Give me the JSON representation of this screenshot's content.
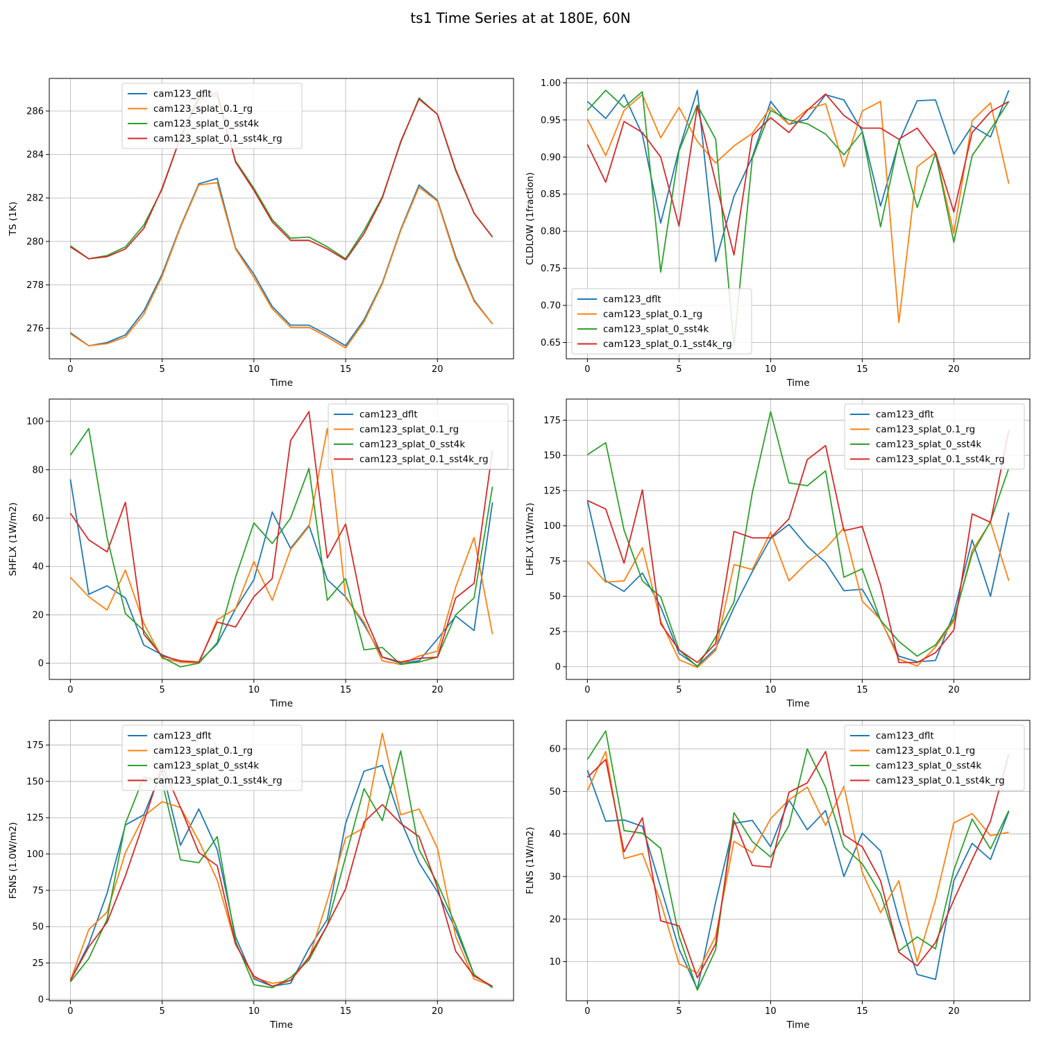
{
  "suptitle": "ts1 Time Series at at 180E, 60N",
  "colors": {
    "cam123_dflt": "#1f77b4",
    "cam123_splat_0.1_rg": "#ff7f0e",
    "cam123_splat_0_sst4k": "#2ca02c",
    "cam123_splat_0.1_sst4k_rg": "#d62728"
  },
  "chart_data": [
    {
      "type": "line",
      "id": "ts",
      "title": "",
      "xlabel": "Time",
      "ylabel": "TS (1K)",
      "xlim": [
        -1.15,
        24.15
      ],
      "ylim": [
        274.6,
        287.5
      ],
      "xticks": [
        0,
        5,
        10,
        15,
        20
      ],
      "yticks": [
        276,
        278,
        280,
        282,
        284,
        286
      ],
      "ytick_labels": [
        "276",
        "278",
        "280",
        "282",
        "284",
        "286"
      ],
      "grid": true,
      "legend_loc": "upper-center",
      "x": [
        0,
        1,
        2,
        3,
        4,
        5,
        6,
        7,
        8,
        9,
        10,
        11,
        12,
        13,
        14,
        15,
        16,
        17,
        18,
        19,
        20,
        21,
        22,
        23
      ],
      "series": [
        {
          "name": "cam123_dflt",
          "values": [
            275.8,
            275.2,
            275.35,
            275.7,
            276.8,
            278.5,
            280.7,
            282.65,
            282.9,
            279.7,
            278.5,
            277.0,
            276.15,
            276.15,
            275.7,
            275.2,
            276.4,
            278.1,
            280.55,
            282.6,
            281.9,
            279.3,
            277.3,
            276.2
          ]
        },
        {
          "name": "cam123_splat_0.1_rg",
          "values": [
            275.75,
            275.2,
            275.3,
            275.6,
            276.65,
            278.4,
            280.65,
            282.6,
            282.7,
            279.65,
            278.35,
            276.9,
            276.05,
            276.05,
            275.6,
            275.1,
            276.3,
            278.05,
            280.5,
            282.5,
            281.85,
            279.2,
            277.25,
            276.2
          ]
        },
        {
          "name": "cam123_splat_0_sst4k",
          "values": [
            279.8,
            279.2,
            279.35,
            279.75,
            280.75,
            282.4,
            284.8,
            286.65,
            286.7,
            283.7,
            282.45,
            281.0,
            280.15,
            280.2,
            279.75,
            279.2,
            280.5,
            282.05,
            284.55,
            286.6,
            285.85,
            283.25,
            281.3,
            280.2
          ]
        },
        {
          "name": "cam123_splat_0.1_sst4k_rg",
          "values": [
            279.75,
            279.2,
            279.3,
            279.65,
            280.6,
            282.45,
            284.8,
            286.55,
            286.85,
            283.65,
            282.35,
            280.9,
            280.05,
            280.05,
            279.65,
            279.15,
            280.35,
            282.0,
            284.6,
            286.55,
            285.85,
            283.3,
            281.3,
            280.2
          ]
        }
      ]
    },
    {
      "type": "line",
      "id": "cldlow",
      "title": "",
      "xlabel": "Time",
      "ylabel": "CLDLOW (1fraction)",
      "xlim": [
        -1.15,
        24.15
      ],
      "ylim": [
        0.628,
        1.006
      ],
      "xticks": [
        0,
        5,
        10,
        15,
        20
      ],
      "yticks": [
        0.65,
        0.7,
        0.75,
        0.8,
        0.85,
        0.9,
        0.95,
        1.0
      ],
      "ytick_labels": [
        "0.65",
        "0.70",
        "0.75",
        "0.80",
        "0.85",
        "0.90",
        "0.95",
        "1.00"
      ],
      "grid": true,
      "legend_loc": "lower-left",
      "x": [
        0,
        1,
        2,
        3,
        4,
        5,
        6,
        7,
        8,
        9,
        10,
        11,
        12,
        13,
        14,
        15,
        16,
        17,
        18,
        19,
        20,
        21,
        22,
        23
      ],
      "series": [
        {
          "name": "cam123_dflt",
          "values": [
            0.975,
            0.952,
            0.984,
            0.93,
            0.811,
            0.91,
            0.99,
            0.759,
            0.847,
            0.9,
            0.975,
            0.944,
            0.951,
            0.984,
            0.977,
            0.935,
            0.834,
            0.92,
            0.976,
            0.977,
            0.904,
            0.942,
            0.927,
            0.99
          ]
        },
        {
          "name": "cam123_splat_0.1_rg",
          "values": [
            0.951,
            0.902,
            0.963,
            0.984,
            0.926,
            0.967,
            0.921,
            0.892,
            0.915,
            0.932,
            0.967,
            0.944,
            0.964,
            0.972,
            0.887,
            0.962,
            0.975,
            0.677,
            0.887,
            0.906,
            0.797,
            0.949,
            0.973,
            0.864
          ]
        },
        {
          "name": "cam123_splat_0_sst4k",
          "values": [
            0.963,
            0.99,
            0.967,
            0.988,
            0.745,
            0.908,
            0.97,
            0.924,
            0.646,
            0.898,
            0.963,
            0.95,
            0.945,
            0.931,
            0.903,
            0.934,
            0.806,
            0.922,
            0.832,
            0.905,
            0.785,
            0.902,
            0.937,
            0.975
          ]
        },
        {
          "name": "cam123_splat_0.1_sst4k_rg",
          "values": [
            0.917,
            0.866,
            0.948,
            0.933,
            0.9,
            0.807,
            0.968,
            0.866,
            0.768,
            0.929,
            0.953,
            0.933,
            0.963,
            0.985,
            0.956,
            0.939,
            0.939,
            0.924,
            0.939,
            0.906,
            0.826,
            0.933,
            0.961,
            0.975
          ]
        }
      ]
    },
    {
      "type": "line",
      "id": "shflx",
      "title": "",
      "xlabel": "Time",
      "ylabel": "SHFLX (1W/m2)",
      "xlim": [
        -1.15,
        24.15
      ],
      "ylim": [
        -6.7,
        109.2
      ],
      "xticks": [
        0,
        5,
        10,
        15,
        20
      ],
      "yticks": [
        0,
        20,
        40,
        60,
        80,
        100
      ],
      "ytick_labels": [
        "0",
        "20",
        "40",
        "60",
        "80",
        "100"
      ],
      "grid": true,
      "legend_loc": "upper-right",
      "x": [
        0,
        1,
        2,
        3,
        4,
        5,
        6,
        7,
        8,
        9,
        10,
        11,
        12,
        13,
        14,
        15,
        16,
        17,
        18,
        19,
        20,
        21,
        22,
        23
      ],
      "series": [
        {
          "name": "cam123_dflt",
          "values": [
            76,
            28.5,
            32,
            27,
            7.5,
            3.5,
            0.5,
            0.5,
            8,
            22.5,
            34.5,
            62.5,
            47.5,
            57,
            34.5,
            27.5,
            16,
            2.5,
            0,
            1,
            10,
            19.5,
            13.5,
            66.5
          ]
        },
        {
          "name": "cam123_splat_0.1_rg",
          "values": [
            35.5,
            27.5,
            22,
            38.5,
            16.5,
            2,
            0.5,
            0,
            18,
            22.5,
            42,
            26,
            47,
            56.5,
            97,
            27,
            17,
            1,
            -0.5,
            3,
            5,
            31.5,
            52,
            12
          ]
        },
        {
          "name": "cam123_splat_0_sst4k",
          "values": [
            86,
            97,
            52,
            20.5,
            13.5,
            2.5,
            -1.5,
            0,
            8.5,
            35.5,
            58,
            49.5,
            60,
            80.5,
            26,
            35,
            5.5,
            6.5,
            -0.5,
            0.5,
            2.5,
            20,
            27,
            73
          ]
        },
        {
          "name": "cam123_splat_0.1_sst4k_rg",
          "values": [
            62,
            51,
            46,
            66.5,
            12,
            3,
            1,
            0.5,
            17,
            15,
            27.5,
            35,
            92,
            104,
            43.5,
            57.5,
            20,
            2.5,
            0.5,
            2,
            2.5,
            27,
            33,
            88
          ]
        }
      ]
    },
    {
      "type": "line",
      "id": "lhflx",
      "title": "",
      "xlabel": "Time",
      "ylabel": "LHFLX (1W/m2)",
      "xlim": [
        -1.15,
        24.15
      ],
      "ylim": [
        -9.0,
        190.0
      ],
      "xticks": [
        0,
        5,
        10,
        15,
        20
      ],
      "yticks": [
        0,
        25,
        50,
        75,
        100,
        125,
        150,
        175
      ],
      "ytick_labels": [
        "0",
        "25",
        "50",
        "75",
        "100",
        "125",
        "150",
        "175"
      ],
      "grid": true,
      "legend_loc": "upper-right",
      "x": [
        0,
        1,
        2,
        3,
        4,
        5,
        6,
        7,
        8,
        9,
        10,
        11,
        12,
        13,
        14,
        15,
        16,
        17,
        18,
        19,
        20,
        21,
        22,
        23
      ],
      "series": [
        {
          "name": "cam123_dflt",
          "values": [
            118,
            61,
            53.5,
            66.5,
            42.5,
            9.5,
            0.5,
            13,
            42,
            67.5,
            91,
            101,
            85.5,
            74,
            54,
            55,
            33,
            7.5,
            3.5,
            4.5,
            38,
            90,
            50,
            109.5
          ]
        },
        {
          "name": "cam123_splat_0.1_rg",
          "values": [
            74.5,
            60,
            61,
            84.5,
            32.5,
            5,
            -0.5,
            11.5,
            72.5,
            69,
            95.5,
            61,
            74,
            84,
            98.5,
            46.5,
            33.5,
            5.5,
            0.5,
            14,
            32.5,
            82.5,
            102.5,
            61
          ]
        },
        {
          "name": "cam123_splat_0_sst4k",
          "values": [
            150.5,
            159,
            97,
            61,
            49.5,
            12,
            0,
            21,
            46,
            123.5,
            181,
            130.5,
            128.5,
            139,
            63.5,
            69.5,
            33,
            18,
            7.5,
            15.5,
            34,
            80,
            103,
            141
          ]
        },
        {
          "name": "cam123_splat_0.1_sst4k_rg",
          "values": [
            118,
            112,
            73.5,
            125.5,
            30.5,
            12,
            3,
            16.5,
            96,
            91.5,
            91.5,
            105,
            147,
            157,
            96.5,
            99.5,
            58,
            3,
            3,
            10,
            26,
            108.5,
            102.5,
            168
          ]
        }
      ]
    },
    {
      "type": "line",
      "id": "fsns",
      "title": "",
      "xlabel": "Time",
      "ylabel": "FSNS (1.0W/m2)",
      "xlim": [
        -1.15,
        24.15
      ],
      "ylim": [
        -1.0,
        192.0
      ],
      "xticks": [
        0,
        5,
        10,
        15,
        20
      ],
      "yticks": [
        0,
        25,
        50,
        75,
        100,
        125,
        150,
        175
      ],
      "ytick_labels": [
        "0",
        "25",
        "50",
        "75",
        "100",
        "125",
        "150",
        "175"
      ],
      "grid": true,
      "legend_loc": "upper-center",
      "x": [
        0,
        1,
        2,
        3,
        4,
        5,
        6,
        7,
        8,
        9,
        10,
        11,
        12,
        13,
        14,
        15,
        16,
        17,
        18,
        19,
        20,
        21,
        22,
        23
      ],
      "series": [
        {
          "name": "cam123_dflt",
          "values": [
            13,
            38,
            73,
            120,
            127,
            158,
            106,
            131,
            103,
            43,
            14,
            9,
            11,
            35,
            55,
            121,
            157,
            161,
            123,
            94,
            74,
            48,
            17,
            8
          ]
        },
        {
          "name": "cam123_splat_0.1_rg",
          "values": [
            13,
            48,
            60,
            101,
            126,
            136,
            132,
            109,
            82,
            38,
            15,
            11,
            13,
            28,
            68,
            111,
            118,
            183,
            127,
            131,
            104,
            43,
            14,
            9
          ]
        },
        {
          "name": "cam123_splat_0_sst4k",
          "values": [
            12,
            28,
            55,
            121,
            153,
            150,
            96,
            94,
            112,
            40,
            10,
            8,
            15,
            27,
            51,
            98,
            145,
            123,
            171,
            103,
            80,
            51,
            17,
            8
          ]
        },
        {
          "name": "cam123_splat_0.1_sst4k_rg",
          "values": [
            13,
            36,
            53,
            85,
            122,
            161,
            132,
            101,
            92,
            38,
            16,
            9,
            13,
            29,
            51,
            76,
            122,
            134,
            121,
            112,
            77,
            33,
            16,
            9
          ]
        }
      ]
    },
    {
      "type": "line",
      "id": "flns",
      "title": "",
      "xlabel": "Time",
      "ylabel": "FLNS (1W/m2)",
      "xlim": [
        -1.15,
        24.15
      ],
      "ylim": [
        0.8,
        66.7
      ],
      "xticks": [
        0,
        5,
        10,
        15,
        20
      ],
      "yticks": [
        10,
        20,
        30,
        40,
        50,
        60
      ],
      "ytick_labels": [
        "10",
        "20",
        "30",
        "40",
        "50",
        "60"
      ],
      "grid": true,
      "legend_loc": "upper-right",
      "x": [
        0,
        1,
        2,
        3,
        4,
        5,
        6,
        7,
        8,
        9,
        10,
        11,
        12,
        13,
        14,
        15,
        16,
        17,
        18,
        19,
        20,
        21,
        22,
        23
      ],
      "series": [
        {
          "name": "cam123_dflt",
          "values": [
            55,
            43,
            43.3,
            41.8,
            27.5,
            13,
            3.5,
            24,
            42.5,
            43.2,
            37,
            48,
            41,
            45.5,
            30,
            40.2,
            36,
            20,
            7,
            5.8,
            29,
            37.8,
            34,
            45.3
          ]
        },
        {
          "name": "cam123_splat_0.1_rg",
          "values": [
            50.2,
            59.4,
            34.2,
            35.4,
            24,
            9.5,
            7.3,
            16,
            38.3,
            35.6,
            43.6,
            48,
            51,
            42,
            51.2,
            31,
            21.5,
            29,
            10,
            24.5,
            42.6,
            44.8,
            39.6,
            40.4
          ]
        },
        {
          "name": "cam123_splat_0_sst4k",
          "values": [
            57.5,
            64.2,
            40.8,
            40.2,
            36.6,
            16,
            3.3,
            12.8,
            45,
            38.2,
            34.6,
            42,
            60,
            51,
            37,
            33,
            26,
            12.5,
            15.8,
            13,
            31.5,
            43.5,
            36.5,
            45.5
          ]
        },
        {
          "name": "cam123_splat_0.1_sst4k_rg",
          "values": [
            53.3,
            57.5,
            35.8,
            43.8,
            19.6,
            18.4,
            6.2,
            14.2,
            43.2,
            32.6,
            32.2,
            49.8,
            52,
            59.4,
            39.8,
            37,
            29,
            12.2,
            9,
            14.5,
            24.5,
            34,
            43,
            58.8
          ]
        }
      ]
    }
  ]
}
